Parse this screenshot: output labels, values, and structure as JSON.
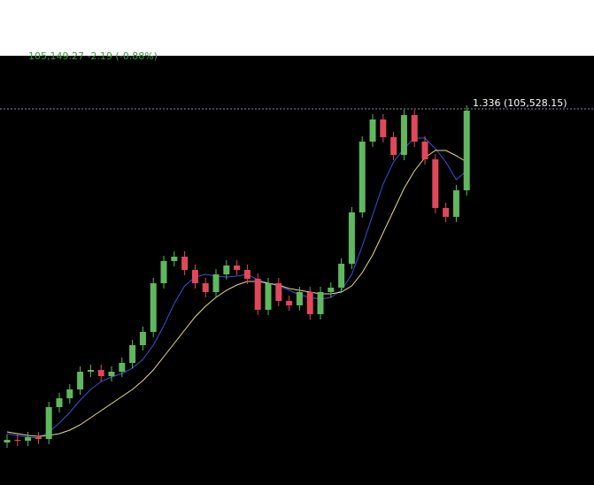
{
  "chart_data": {
    "type": "candlestick",
    "header_text": "105,149.27 -2.19 (-0.88%)",
    "price_line": 425,
    "price_label": "1.336 (105,528.15)",
    "ylim": [
      0,
      485
    ],
    "up_color": "#5fb85f",
    "down_color": "#e0485a",
    "open": [
      48,
      51,
      50,
      54,
      52,
      88,
      98,
      108,
      128,
      130,
      123,
      128,
      138,
      158,
      173,
      228,
      253,
      258,
      243,
      228,
      218,
      238,
      248,
      243,
      233,
      198,
      228,
      208,
      203,
      218,
      193,
      218,
      223,
      250,
      308,
      388,
      413,
      393,
      373,
      418,
      388,
      368,
      313,
      303,
      333
    ],
    "high": [
      57,
      57,
      60,
      60,
      94,
      104,
      114,
      134,
      136,
      136,
      134,
      144,
      164,
      179,
      234,
      259,
      264,
      264,
      249,
      234,
      244,
      254,
      254,
      249,
      239,
      234,
      234,
      214,
      224,
      224,
      224,
      229,
      256,
      314,
      394,
      419,
      419,
      399,
      424,
      424,
      394,
      374,
      319,
      339,
      429
    ],
    "low": [
      42,
      44,
      44,
      46,
      46,
      82,
      92,
      102,
      122,
      117,
      117,
      122,
      132,
      152,
      167,
      222,
      247,
      237,
      222,
      212,
      212,
      232,
      237,
      227,
      192,
      192,
      202,
      197,
      197,
      187,
      187,
      212,
      217,
      244,
      302,
      382,
      387,
      367,
      367,
      382,
      362,
      307,
      297,
      297,
      327
    ],
    "close": [
      51,
      50,
      54,
      52,
      88,
      98,
      108,
      128,
      130,
      123,
      128,
      138,
      158,
      173,
      228,
      253,
      258,
      243,
      228,
      218,
      238,
      248,
      243,
      233,
      198,
      228,
      208,
      203,
      218,
      193,
      218,
      223,
      250,
      308,
      388,
      413,
      393,
      373,
      418,
      388,
      368,
      313,
      303,
      333,
      423
    ],
    "series": [
      {
        "color": "#3d4fd8",
        "values": [
          58,
          56,
          54,
          53,
          60,
          70,
          82,
          96,
          108,
          117,
          122,
          126,
          132,
          142,
          158,
          180,
          205,
          225,
          235,
          238,
          236,
          235,
          236,
          238,
          232,
          228,
          225,
          220,
          215,
          212,
          210,
          212,
          220,
          238,
          270,
          305,
          340,
          365,
          380,
          392,
          392,
          380,
          365,
          345,
          355
        ]
      },
      {
        "color": "#e8dc8a",
        "values": [
          60,
          58,
          56,
          55,
          56,
          58,
          62,
          68,
          76,
          84,
          92,
          100,
          108,
          118,
          130,
          145,
          160,
          175,
          190,
          202,
          212,
          220,
          226,
          230,
          230,
          228,
          226,
          222,
          220,
          218,
          216,
          216,
          218,
          225,
          240,
          260,
          285,
          310,
          335,
          355,
          370,
          378,
          378,
          372,
          365
        ]
      }
    ]
  }
}
